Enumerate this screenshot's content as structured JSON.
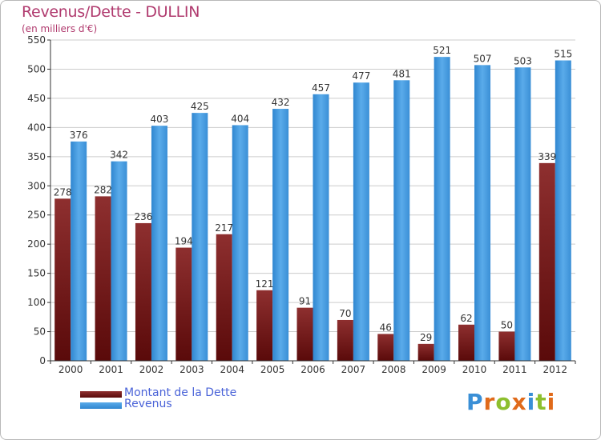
{
  "title": "Revenus/Dette - DULLIN",
  "subtitle": "(en milliers d'€)",
  "logo": {
    "text": "Proxiti",
    "letters": [
      "P",
      "r",
      "o",
      "x",
      "i",
      "t",
      "i"
    ],
    "colors": [
      "#3a8fd6",
      "#e06a1a",
      "#8dbf2e",
      "#e06a1a",
      "#3a8fd6",
      "#8dbf2e",
      "#e06a1a"
    ]
  },
  "colors": {
    "debt": "#7a1e1e",
    "revenue": "#3d95dc",
    "grid": "#cccccc",
    "axis": "#333333"
  },
  "chart_data": {
    "type": "bar",
    "title": "Revenus/Dette - DULLIN",
    "ylabel": "(en milliers d'€)",
    "xlabel": "",
    "ylim": [
      0,
      550
    ],
    "yticks": [
      0,
      50,
      100,
      150,
      200,
      250,
      300,
      350,
      400,
      450,
      500,
      550
    ],
    "grid": true,
    "legend_position": "bottom-left",
    "categories": [
      "2000",
      "2001",
      "2002",
      "2003",
      "2004",
      "2005",
      "2006",
      "2007",
      "2008",
      "2009",
      "2010",
      "2011",
      "2012"
    ],
    "series": [
      {
        "name": "Montant de la Dette",
        "color": "#7a1e1e",
        "values": [
          278,
          282,
          236,
          194,
          217,
          121,
          91,
          70,
          46,
          29,
          62,
          50,
          339
        ]
      },
      {
        "name": "Revenus",
        "color": "#3d95dc",
        "values": [
          376,
          342,
          403,
          425,
          404,
          432,
          457,
          477,
          481,
          521,
          507,
          503,
          515
        ]
      }
    ]
  }
}
